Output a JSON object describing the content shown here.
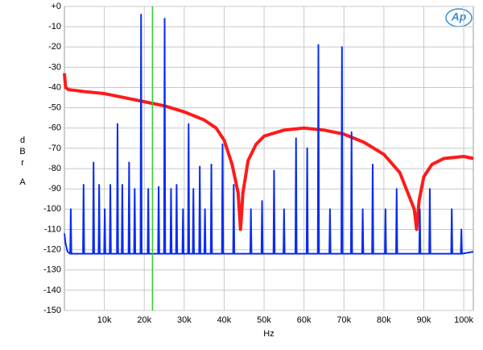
{
  "chart_data": {
    "type": "line",
    "logo": "Ap",
    "x_label": "Hz",
    "y_label": "dBr",
    "y_label_unit": "A",
    "xlim": [
      0,
      102400
    ],
    "ylim": [
      -150,
      0
    ],
    "grid": true,
    "xticks": [
      {
        "value": 10000,
        "label": "10k"
      },
      {
        "value": 20000,
        "label": "20k"
      },
      {
        "value": 30000,
        "label": "30k"
      },
      {
        "value": 40000,
        "label": "40k"
      },
      {
        "value": 50000,
        "label": "50k"
      },
      {
        "value": 60000,
        "label": "60k"
      },
      {
        "value": 70000,
        "label": "70k"
      },
      {
        "value": 80000,
        "label": "80k"
      },
      {
        "value": 90000,
        "label": "90k"
      },
      {
        "value": 100000,
        "label": "100k"
      }
    ],
    "yticks": [
      {
        "value": 0,
        "label": "+0"
      },
      -10,
      -20,
      -30,
      -40,
      -50,
      -60,
      -70,
      -80,
      -90,
      -100,
      -110,
      -120,
      -130,
      -140,
      -150
    ],
    "vlines": [
      {
        "value": 22050,
        "color": "#33cc33"
      }
    ],
    "series": [
      {
        "color": "#ff1a1a",
        "width": 4,
        "x": [
          0,
          300,
          1000,
          5000,
          10000,
          15000,
          20000,
          25000,
          30000,
          35000,
          38000,
          40000,
          42000,
          43500,
          44100,
          44700,
          46000,
          48000,
          50000,
          55000,
          60000,
          65000,
          70000,
          75000,
          80000,
          84000,
          86000,
          87600,
          88200,
          88800,
          90000,
          92000,
          95000,
          100000,
          102400
        ],
        "values": [
          -33,
          -40,
          -41,
          -42,
          -43,
          -45,
          -47,
          -49,
          -52,
          -56,
          -60,
          -66,
          -78,
          -92,
          -110,
          -92,
          -76,
          -68,
          -64,
          -61,
          -60,
          -61,
          -63,
          -67,
          -73,
          -82,
          -92,
          -100,
          -110,
          -96,
          -84,
          -78,
          -75,
          -74,
          -75
        ]
      },
      {
        "color": "#0a2cf0",
        "width": 2,
        "x": [
          0,
          300,
          800,
          1450,
          1600,
          1750,
          4650,
          4800,
          4950,
          7150,
          7300,
          7450,
          8550,
          8700,
          8850,
          9950,
          10100,
          10250,
          11350,
          11500,
          11650,
          13150,
          13300,
          13450,
          14350,
          14500,
          14650,
          16050,
          16200,
          16350,
          17450,
          17600,
          17750,
          19050,
          19200,
          19350,
          20850,
          21000,
          21150,
          23450,
          23600,
          23750,
          24950,
          25100,
          25250,
          26550,
          26700,
          26850,
          27950,
          28100,
          28250,
          29550,
          29700,
          29850,
          30950,
          31100,
          31250,
          32150,
          32300,
          32450,
          33750,
          33900,
          34050,
          35050,
          35200,
          35350,
          36650,
          36800,
          36950,
          39450,
          39600,
          39750,
          42250,
          42400,
          42550,
          46550,
          46700,
          46850,
          49350,
          49500,
          49650,
          52350,
          52500,
          52650,
          54850,
          55000,
          55150,
          57850,
          58000,
          58150,
          60650,
          60800,
          60950,
          63450,
          63600,
          63750,
          66350,
          66500,
          66650,
          69350,
          69500,
          69650,
          71750,
          71900,
          72050,
          74550,
          74700,
          74850,
          77050,
          77200,
          77350,
          80250,
          80400,
          80550,
          83050,
          83200,
          83350,
          88850,
          89000,
          89150,
          91350,
          91500,
          91650,
          96850,
          97000,
          97150,
          99250,
          99400,
          99550,
          102400
        ],
        "values": [
          -112,
          -117,
          -121,
          -122,
          -100,
          -122,
          -122,
          -88,
          -122,
          -122,
          -77,
          -122,
          -122,
          -88,
          -122,
          -122,
          -100,
          -122,
          -122,
          -88,
          -122,
          -122,
          -58,
          -122,
          -122,
          -88,
          -122,
          -122,
          -77,
          -122,
          -122,
          -90,
          -122,
          -122,
          -4,
          -122,
          -122,
          -90,
          -122,
          -122,
          -89,
          -122,
          -122,
          -6,
          -122,
          -122,
          -90,
          -122,
          -122,
          -88,
          -122,
          -122,
          -100,
          -122,
          -122,
          -58,
          -122,
          -122,
          -90,
          -122,
          -122,
          -79,
          -122,
          -122,
          -100,
          -122,
          -122,
          -78,
          -122,
          -122,
          -68,
          -122,
          -122,
          -88,
          -122,
          -122,
          -100,
          -122,
          -122,
          -96,
          -122,
          -122,
          -81,
          -122,
          -122,
          -100,
          -122,
          -122,
          -65,
          -122,
          -122,
          -70,
          -122,
          -122,
          -19,
          -122,
          -122,
          -100,
          -122,
          -122,
          -20,
          -122,
          -122,
          -62,
          -122,
          -122,
          -100,
          -122,
          -122,
          -78,
          -122,
          -122,
          -100,
          -122,
          -122,
          -90,
          -122,
          -122,
          -100,
          -122,
          -122,
          -90,
          -122,
          -122,
          -100,
          -122,
          -122,
          -110,
          -122,
          -121
        ]
      }
    ]
  }
}
